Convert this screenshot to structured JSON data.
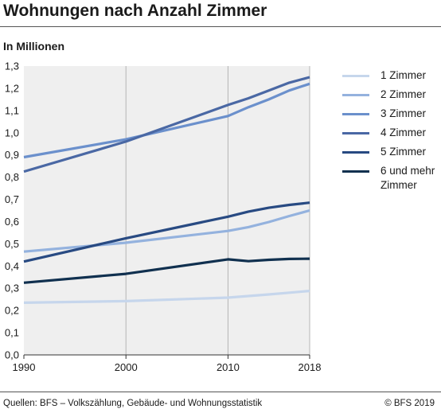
{
  "header": {
    "title": "Wohnungen nach Anzahl Zimmer",
    "unit_label": "In Millionen"
  },
  "footer": {
    "source": "Quellen: BFS – Volkszählung, Gebäude- und Wohnungsstatistik",
    "copyright": "© BFS 2019"
  },
  "chart_data": {
    "type": "line",
    "title": "Wohnungen nach Anzahl Zimmer",
    "ylabel": "In Millionen",
    "xlabel": "",
    "xlim": [
      1990,
      2018
    ],
    "ylim": [
      0,
      1.3
    ],
    "x_ticks": [
      "1990",
      "2000",
      "2010",
      "2018"
    ],
    "x_tick_values": [
      1990,
      2000,
      2010,
      2018
    ],
    "y_ticks": [
      "0,0",
      "0,1",
      "0,2",
      "0,3",
      "0,4",
      "0,5",
      "0,6",
      "0,7",
      "0,8",
      "0,9",
      "1,0",
      "1,1",
      "1,2",
      "1,3"
    ],
    "y_tick_values": [
      0,
      0.1,
      0.2,
      0.3,
      0.4,
      0.5,
      0.6,
      0.7,
      0.8,
      0.9,
      1.0,
      1.1,
      1.2,
      1.3
    ],
    "grid": "vertical",
    "legend_position": "right",
    "plot_background": "#efefef",
    "series": [
      {
        "name": "1 Zimmer",
        "color": "#c6d6ec",
        "x": [
          1990,
          2000,
          2010,
          2012,
          2014,
          2016,
          2018
        ],
        "y": [
          0.235,
          0.242,
          0.258,
          0.265,
          0.272,
          0.28,
          0.288
        ]
      },
      {
        "name": "2 Zimmer",
        "color": "#94b2de",
        "x": [
          1990,
          2000,
          2010,
          2012,
          2014,
          2016,
          2018
        ],
        "y": [
          0.465,
          0.505,
          0.558,
          0.575,
          0.598,
          0.625,
          0.65
        ]
      },
      {
        "name": "3 Zimmer",
        "color": "#6b90cc",
        "x": [
          1990,
          2000,
          2010,
          2012,
          2014,
          2016,
          2018
        ],
        "y": [
          0.89,
          0.97,
          1.075,
          1.115,
          1.15,
          1.19,
          1.22
        ]
      },
      {
        "name": "4 Zimmer",
        "color": "#4a68a4",
        "x": [
          1990,
          2000,
          2010,
          2012,
          2014,
          2016,
          2018
        ],
        "y": [
          0.825,
          0.96,
          1.125,
          1.155,
          1.19,
          1.225,
          1.25
        ]
      },
      {
        "name": "5 Zimmer",
        "color": "#284a82",
        "x": [
          1990,
          2000,
          2010,
          2012,
          2014,
          2016,
          2018
        ],
        "y": [
          0.42,
          0.525,
          0.622,
          0.645,
          0.662,
          0.675,
          0.685
        ]
      },
      {
        "name": "6 und mehr Zimmer",
        "color": "#10304f",
        "x": [
          1990,
          2000,
          2010,
          2012,
          2014,
          2016,
          2018
        ],
        "y": [
          0.325,
          0.365,
          0.43,
          0.422,
          0.428,
          0.432,
          0.433
        ]
      }
    ]
  }
}
